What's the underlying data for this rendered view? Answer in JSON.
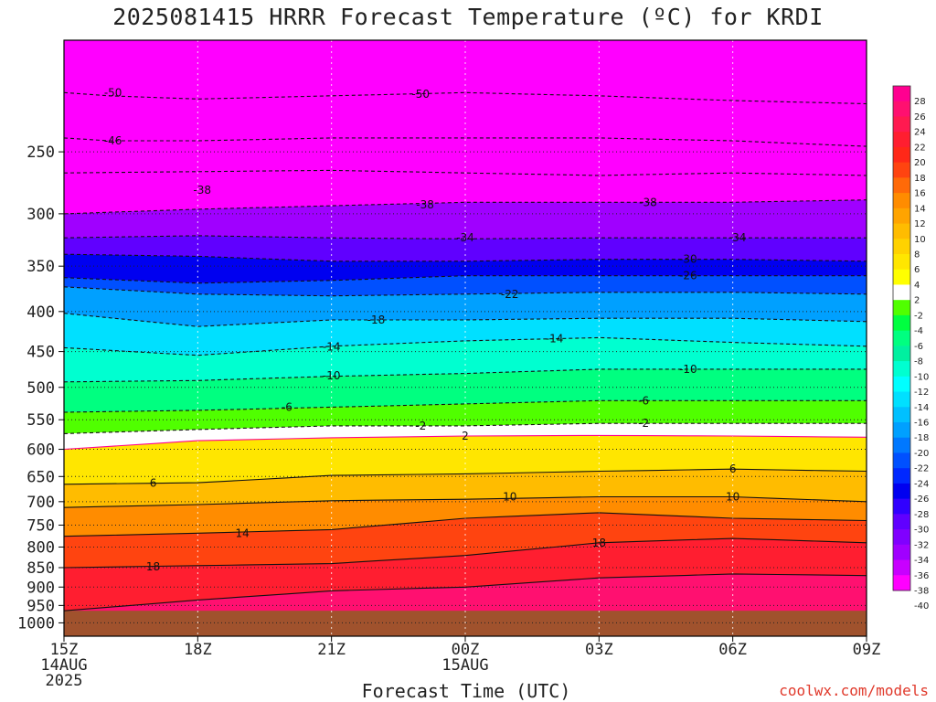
{
  "title": "2025081415 HRRR Forecast Temperature (ºC) for KRDI",
  "xlabel": "Forecast Time (UTC)",
  "credit": "coolwx.com/models",
  "chart_data": {
    "type": "heatmap",
    "title": "2025081415 HRRR Forecast Temperature (ºC) for KRDI",
    "xlabel": "Forecast Time (UTC)",
    "ylabel": "",
    "x_ticks": [
      {
        "h": 0,
        "lines": [
          "15Z",
          "14AUG",
          "2025"
        ]
      },
      {
        "h": 3,
        "lines": [
          "18Z"
        ]
      },
      {
        "h": 6,
        "lines": [
          "21Z"
        ]
      },
      {
        "h": 9,
        "lines": [
          "00Z",
          "15AUG"
        ]
      },
      {
        "h": 12,
        "lines": [
          "03Z"
        ]
      },
      {
        "h": 15,
        "lines": [
          "06Z"
        ]
      },
      {
        "h": 18,
        "lines": [
          "09Z"
        ]
      }
    ],
    "y_ticks": [
      250,
      300,
      350,
      400,
      450,
      500,
      550,
      600,
      650,
      700,
      750,
      800,
      850,
      900,
      950,
      1000
    ],
    "ylim_hpa": [
      1040,
      180
    ],
    "surface_pressure_hpa": 965,
    "colorbar": {
      "labels": [
        28,
        26,
        24,
        22,
        20,
        18,
        16,
        14,
        12,
        10,
        8,
        6,
        4,
        2,
        -2,
        -4,
        -6,
        -8,
        -10,
        -12,
        -14,
        -16,
        -18,
        -20,
        -22,
        -24,
        -26,
        -28,
        -30,
        -32,
        -34,
        -36,
        -38,
        -40
      ],
      "colors": [
        "#ff0090",
        "#ff1070",
        "#ff1a50",
        "#ff1e30",
        "#ff2818",
        "#ff4410",
        "#ff6a08",
        "#ff8c00",
        "#ffa400",
        "#ffbc00",
        "#ffd200",
        "#ffe600",
        "#ffff00",
        "#ffffff",
        "#50ff00",
        "#00ff40",
        "#00ff80",
        "#00f0a0",
        "#00ffd0",
        "#00ffff",
        "#00e0ff",
        "#00c0ff",
        "#00a0ff",
        "#0078ff",
        "#0050ff",
        "#0028ff",
        "#0000f0",
        "#3000ff",
        "#6000ff",
        "#8000ff",
        "#a000ff",
        "#c800ff",
        "#ff00ff"
      ]
    },
    "series": [
      {
        "value": -50,
        "points": [
          [
            0,
            210
          ],
          [
            1,
            212
          ],
          [
            3,
            214
          ],
          [
            6,
            212
          ],
          [
            9,
            210
          ],
          [
            12,
            212
          ],
          [
            15,
            215
          ],
          [
            18,
            217
          ]
        ]
      },
      {
        "value": -46,
        "points": [
          [
            0,
            240
          ],
          [
            1,
            242
          ],
          [
            3,
            242
          ],
          [
            6,
            240
          ],
          [
            9,
            240
          ],
          [
            12,
            240
          ],
          [
            15,
            242
          ],
          [
            18,
            246
          ]
        ]
      },
      {
        "value": -42,
        "points": [
          [
            0,
            266
          ],
          [
            3,
            265
          ],
          [
            6,
            264
          ],
          [
            9,
            266
          ],
          [
            12,
            268
          ],
          [
            15,
            266
          ],
          [
            18,
            268
          ]
        ]
      },
      {
        "value": -38,
        "points": [
          [
            0,
            300
          ],
          [
            3,
            296
          ],
          [
            6,
            293
          ],
          [
            9,
            290
          ],
          [
            12,
            290
          ],
          [
            15,
            290
          ],
          [
            18,
            288
          ]
        ]
      },
      {
        "value": -34,
        "points": [
          [
            0,
            322
          ],
          [
            3,
            320
          ],
          [
            6,
            322
          ],
          [
            9,
            323
          ],
          [
            12,
            322
          ],
          [
            15,
            322
          ],
          [
            18,
            322
          ]
        ]
      },
      {
        "value": -30,
        "points": [
          [
            0,
            338
          ],
          [
            3,
            340
          ],
          [
            6,
            345
          ],
          [
            9,
            345
          ],
          [
            12,
            343
          ],
          [
            15,
            343
          ],
          [
            18,
            345
          ]
        ]
      },
      {
        "value": -26,
        "points": [
          [
            0,
            362
          ],
          [
            3,
            368
          ],
          [
            6,
            365
          ],
          [
            9,
            360
          ],
          [
            12,
            360
          ],
          [
            15,
            360
          ],
          [
            18,
            360
          ]
        ]
      },
      {
        "value": -22,
        "points": [
          [
            0,
            372
          ],
          [
            3,
            380
          ],
          [
            6,
            382
          ],
          [
            9,
            380
          ],
          [
            12,
            378
          ],
          [
            15,
            378
          ],
          [
            18,
            380
          ]
        ]
      },
      {
        "value": -18,
        "points": [
          [
            0,
            402
          ],
          [
            3,
            418
          ],
          [
            6,
            410
          ],
          [
            9,
            410
          ],
          [
            12,
            408
          ],
          [
            15,
            408
          ],
          [
            18,
            412
          ]
        ]
      },
      {
        "value": -14,
        "points": [
          [
            0,
            445
          ],
          [
            3,
            455
          ],
          [
            6,
            443
          ],
          [
            9,
            436
          ],
          [
            12,
            432
          ],
          [
            15,
            438
          ],
          [
            18,
            443
          ]
        ]
      },
      {
        "value": -10,
        "points": [
          [
            0,
            492
          ],
          [
            3,
            490
          ],
          [
            6,
            484
          ],
          [
            9,
            480
          ],
          [
            12,
            474
          ],
          [
            15,
            474
          ],
          [
            18,
            474
          ]
        ]
      },
      {
        "value": -6,
        "points": [
          [
            0,
            538
          ],
          [
            3,
            535
          ],
          [
            6,
            530
          ],
          [
            9,
            525
          ],
          [
            12,
            520
          ],
          [
            15,
            520
          ],
          [
            18,
            520
          ]
        ]
      },
      {
        "value": -2,
        "points": [
          [
            0,
            573
          ],
          [
            3,
            566
          ],
          [
            6,
            560
          ],
          [
            9,
            560
          ],
          [
            12,
            556
          ],
          [
            15,
            556
          ],
          [
            18,
            556
          ]
        ]
      },
      {
        "value": 2,
        "points": [
          [
            0,
            600
          ],
          [
            3,
            585
          ],
          [
            6,
            580
          ],
          [
            9,
            577
          ],
          [
            12,
            576
          ],
          [
            15,
            577
          ],
          [
            18,
            579
          ]
        ]
      },
      {
        "value": 6,
        "points": [
          [
            0,
            665
          ],
          [
            3,
            662
          ],
          [
            6,
            648
          ],
          [
            9,
            645
          ],
          [
            12,
            640
          ],
          [
            15,
            636
          ],
          [
            18,
            640
          ]
        ]
      },
      {
        "value": 10,
        "points": [
          [
            0,
            712
          ],
          [
            3,
            706
          ],
          [
            6,
            698
          ],
          [
            9,
            695
          ],
          [
            12,
            690
          ],
          [
            15,
            690
          ],
          [
            18,
            700
          ]
        ]
      },
      {
        "value": 14,
        "points": [
          [
            0,
            775
          ],
          [
            3,
            768
          ],
          [
            6,
            760
          ],
          [
            9,
            735
          ],
          [
            12,
            723
          ],
          [
            15,
            735
          ],
          [
            18,
            740
          ]
        ]
      },
      {
        "value": 18,
        "points": [
          [
            0,
            850
          ],
          [
            3,
            845
          ],
          [
            6,
            840
          ],
          [
            9,
            820
          ],
          [
            12,
            790
          ],
          [
            15,
            780
          ],
          [
            18,
            790
          ]
        ]
      },
      {
        "value": 22,
        "points": [
          [
            0,
            965
          ],
          [
            3,
            935
          ],
          [
            6,
            910
          ],
          [
            9,
            900
          ],
          [
            12,
            876
          ],
          [
            15,
            866
          ],
          [
            18,
            870
          ]
        ]
      }
    ],
    "contour_labels": [
      {
        "text": "-50",
        "x": 1.1,
        "p": 210
      },
      {
        "text": "-50",
        "x": 8.0,
        "p": 211
      },
      {
        "text": "-46",
        "x": 1.1,
        "p": 242
      },
      {
        "text": "-38",
        "x": 3.1,
        "p": 280
      },
      {
        "text": "-38",
        "x": 8.1,
        "p": 292
      },
      {
        "text": "-38",
        "x": 13.1,
        "p": 290
      },
      {
        "text": "-34",
        "x": 9.0,
        "p": 322
      },
      {
        "text": "-34",
        "x": 15.1,
        "p": 322
      },
      {
        "text": "-30",
        "x": 14.0,
        "p": 343
      },
      {
        "text": "-26",
        "x": 14.0,
        "p": 360
      },
      {
        "text": "-22",
        "x": 10.0,
        "p": 380
      },
      {
        "text": "-18",
        "x": 7.0,
        "p": 410
      },
      {
        "text": "-14",
        "x": 6.0,
        "p": 444
      },
      {
        "text": "-14",
        "x": 11.0,
        "p": 433
      },
      {
        "text": "-10",
        "x": 6.0,
        "p": 483
      },
      {
        "text": "-10",
        "x": 14.0,
        "p": 474
      },
      {
        "text": "-6",
        "x": 5.0,
        "p": 530
      },
      {
        "text": "-6",
        "x": 13.0,
        "p": 520
      },
      {
        "text": "-2",
        "x": 8.0,
        "p": 560
      },
      {
        "text": "-2",
        "x": 13.0,
        "p": 556
      },
      {
        "text": "2",
        "x": 9.0,
        "p": 577
      },
      {
        "text": "6",
        "x": 2.0,
        "p": 663
      },
      {
        "text": "6",
        "x": 15.0,
        "p": 636
      },
      {
        "text": "10",
        "x": 10.0,
        "p": 690
      },
      {
        "text": "10",
        "x": 15.0,
        "p": 690
      },
      {
        "text": "14",
        "x": 4.0,
        "p": 768
      },
      {
        "text": "18",
        "x": 2.0,
        "p": 848
      },
      {
        "text": "18",
        "x": 12.0,
        "p": 790
      }
    ]
  }
}
